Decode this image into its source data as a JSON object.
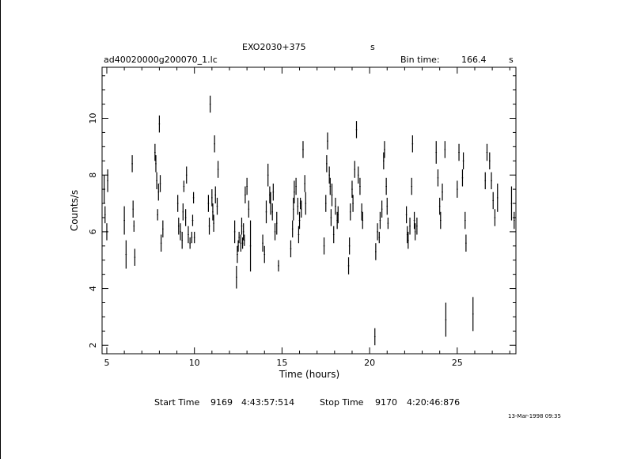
{
  "header": {
    "source": "EXO2030+375",
    "source_suffix": "s",
    "file": "ad40020000g200070_1.lc",
    "bin_label": "Bin time:",
    "bin_value": "166.4",
    "bin_unit": "s"
  },
  "footer": {
    "start_label": "Start Time",
    "start_day": "9169",
    "start_time": "4:43:57:514",
    "stop_label": "Stop Time",
    "stop_day": "9170",
    "stop_time": "4:20:46:876",
    "timestamp": "13-Mar-1998 09:35"
  },
  "chart_data": {
    "type": "scatter",
    "style": "vertical error bars",
    "xlabel": "Time (hours)",
    "ylabel": "Counts/s",
    "xlim": [
      4.73,
      28.35
    ],
    "ylim": [
      1.7,
      11.8
    ],
    "xticks": [
      5,
      10,
      15,
      20,
      25
    ],
    "yticks": [
      2,
      4,
      6,
      8,
      10
    ],
    "points": [
      [
        4.85,
        7.5,
        0.5
      ],
      [
        4.9,
        6.6,
        0.3
      ],
      [
        5.0,
        6.0,
        0.3
      ],
      [
        5.05,
        7.8,
        0.4
      ],
      [
        6.0,
        6.4,
        0.5
      ],
      [
        6.1,
        5.2,
        0.5
      ],
      [
        6.45,
        8.4,
        0.3
      ],
      [
        6.5,
        6.8,
        0.3
      ],
      [
        6.55,
        6.2,
        0.2
      ],
      [
        6.6,
        5.1,
        0.3
      ],
      [
        7.75,
        8.8,
        0.3
      ],
      [
        7.8,
        8.4,
        0.3
      ],
      [
        7.85,
        7.8,
        0.3
      ],
      [
        7.9,
        6.6,
        0.2
      ],
      [
        7.95,
        7.4,
        0.3
      ],
      [
        8.0,
        9.8,
        0.3
      ],
      [
        8.05,
        7.7,
        0.3
      ],
      [
        8.1,
        5.6,
        0.3
      ],
      [
        8.2,
        6.1,
        0.3
      ],
      [
        9.05,
        7.0,
        0.3
      ],
      [
        9.1,
        6.2,
        0.3
      ],
      [
        9.2,
        6.0,
        0.3
      ],
      [
        9.3,
        5.7,
        0.3
      ],
      [
        9.35,
        6.7,
        0.3
      ],
      [
        9.4,
        7.6,
        0.2
      ],
      [
        9.5,
        6.5,
        0.3
      ],
      [
        9.55,
        8.0,
        0.3
      ],
      [
        9.65,
        5.9,
        0.3
      ],
      [
        9.75,
        5.6,
        0.2
      ],
      [
        9.85,
        5.8,
        0.2
      ],
      [
        9.9,
        6.4,
        0.2
      ],
      [
        9.95,
        7.2,
        0.2
      ],
      [
        10.0,
        5.8,
        0.2
      ],
      [
        10.8,
        7.0,
        0.3
      ],
      [
        10.85,
        6.2,
        0.3
      ],
      [
        10.9,
        10.5,
        0.3
      ],
      [
        11.0,
        7.2,
        0.3
      ],
      [
        11.05,
        6.7,
        0.3
      ],
      [
        11.1,
        6.3,
        0.3
      ],
      [
        11.15,
        9.1,
        0.3
      ],
      [
        11.2,
        7.3,
        0.3
      ],
      [
        11.3,
        6.9,
        0.3
      ],
      [
        11.35,
        8.2,
        0.3
      ],
      [
        12.3,
        6.0,
        0.4
      ],
      [
        12.4,
        4.4,
        0.4
      ],
      [
        12.45,
        5.2,
        0.3
      ],
      [
        12.5,
        5.5,
        0.2
      ],
      [
        12.55,
        5.8,
        0.2
      ],
      [
        12.65,
        5.6,
        0.3
      ],
      [
        12.7,
        6.2,
        0.3
      ],
      [
        12.75,
        5.6,
        0.2
      ],
      [
        12.8,
        6.0,
        0.3
      ],
      [
        12.85,
        5.7,
        0.2
      ],
      [
        12.9,
        7.3,
        0.3
      ],
      [
        13.0,
        7.6,
        0.3
      ],
      [
        13.1,
        6.8,
        0.3
      ],
      [
        13.2,
        5.5,
        0.9
      ],
      [
        13.9,
        5.6,
        0.3
      ],
      [
        14.0,
        5.2,
        0.3
      ],
      [
        14.1,
        6.7,
        0.4
      ],
      [
        14.2,
        8.0,
        0.4
      ],
      [
        14.3,
        7.3,
        0.3
      ],
      [
        14.35,
        7.0,
        0.4
      ],
      [
        14.45,
        6.7,
        0.3
      ],
      [
        14.5,
        7.4,
        0.3
      ],
      [
        14.6,
        6.0,
        0.3
      ],
      [
        14.7,
        6.3,
        0.4
      ],
      [
        14.8,
        4.8,
        0.2
      ],
      [
        15.5,
        5.4,
        0.3
      ],
      [
        15.6,
        6.1,
        0.3
      ],
      [
        15.65,
        6.8,
        0.4
      ],
      [
        15.7,
        7.4,
        0.4
      ],
      [
        15.8,
        7.6,
        0.3
      ],
      [
        15.9,
        6.9,
        0.3
      ],
      [
        15.95,
        5.9,
        0.3
      ],
      [
        16.0,
        6.4,
        0.3
      ],
      [
        16.05,
        7.0,
        0.2
      ],
      [
        16.1,
        6.8,
        0.3
      ],
      [
        16.2,
        8.9,
        0.3
      ],
      [
        16.3,
        7.7,
        0.3
      ],
      [
        16.35,
        7.0,
        0.4
      ],
      [
        17.4,
        5.5,
        0.3
      ],
      [
        17.5,
        7.0,
        0.3
      ],
      [
        17.55,
        8.4,
        0.3
      ],
      [
        17.6,
        9.2,
        0.3
      ],
      [
        17.7,
        8.0,
        0.3
      ],
      [
        17.75,
        7.6,
        0.3
      ],
      [
        17.8,
        6.5,
        0.3
      ],
      [
        17.85,
        7.3,
        0.4
      ],
      [
        17.95,
        5.9,
        0.3
      ],
      [
        18.05,
        6.9,
        0.3
      ],
      [
        18.15,
        6.4,
        0.3
      ],
      [
        18.2,
        6.6,
        0.3
      ],
      [
        18.8,
        4.8,
        0.3
      ],
      [
        18.85,
        5.5,
        0.3
      ],
      [
        18.9,
        6.7,
        0.3
      ],
      [
        19.0,
        7.5,
        0.3
      ],
      [
        19.05,
        7.0,
        0.3
      ],
      [
        19.15,
        8.2,
        0.3
      ],
      [
        19.25,
        9.6,
        0.3
      ],
      [
        19.35,
        8.0,
        0.3
      ],
      [
        19.45,
        7.6,
        0.3
      ],
      [
        19.55,
        6.7,
        0.3
      ],
      [
        19.6,
        6.4,
        0.3
      ],
      [
        20.3,
        2.3,
        0.3
      ],
      [
        20.35,
        5.3,
        0.3
      ],
      [
        20.45,
        6.0,
        0.3
      ],
      [
        20.55,
        5.8,
        0.2
      ],
      [
        20.6,
        6.4,
        0.3
      ],
      [
        20.7,
        6.8,
        0.3
      ],
      [
        20.8,
        8.5,
        0.3
      ],
      [
        20.85,
        8.9,
        0.3
      ],
      [
        20.95,
        7.6,
        0.3
      ],
      [
        21.0,
        6.9,
        0.3
      ],
      [
        21.05,
        6.3,
        0.2
      ],
      [
        22.1,
        6.6,
        0.3
      ],
      [
        22.15,
        5.9,
        0.3
      ],
      [
        22.2,
        5.7,
        0.3
      ],
      [
        22.3,
        6.2,
        0.3
      ],
      [
        22.4,
        7.6,
        0.3
      ],
      [
        22.45,
        9.1,
        0.3
      ],
      [
        22.55,
        6.4,
        0.3
      ],
      [
        22.6,
        6.0,
        0.3
      ],
      [
        22.7,
        6.2,
        0.3
      ],
      [
        23.8,
        8.8,
        0.4
      ],
      [
        23.9,
        7.9,
        0.3
      ],
      [
        24.0,
        6.9,
        0.3
      ],
      [
        24.05,
        6.4,
        0.3
      ],
      [
        24.15,
        7.4,
        0.3
      ],
      [
        24.3,
        8.9,
        0.3
      ],
      [
        24.35,
        2.9,
        0.6
      ],
      [
        25.0,
        7.5,
        0.3
      ],
      [
        25.1,
        8.8,
        0.3
      ],
      [
        25.3,
        7.9,
        0.3
      ],
      [
        25.35,
        8.5,
        0.3
      ],
      [
        25.45,
        6.4,
        0.3
      ],
      [
        25.5,
        5.6,
        0.3
      ],
      [
        25.9,
        3.1,
        0.6
      ],
      [
        26.6,
        7.8,
        0.3
      ],
      [
        26.7,
        8.8,
        0.3
      ],
      [
        26.85,
        8.5,
        0.3
      ],
      [
        26.95,
        7.8,
        0.3
      ],
      [
        27.05,
        7.1,
        0.3
      ],
      [
        27.15,
        6.5,
        0.3
      ],
      [
        27.3,
        7.2,
        0.5
      ],
      [
        28.1,
        7.0,
        0.6
      ],
      [
        28.25,
        6.4,
        0.3
      ]
    ]
  }
}
